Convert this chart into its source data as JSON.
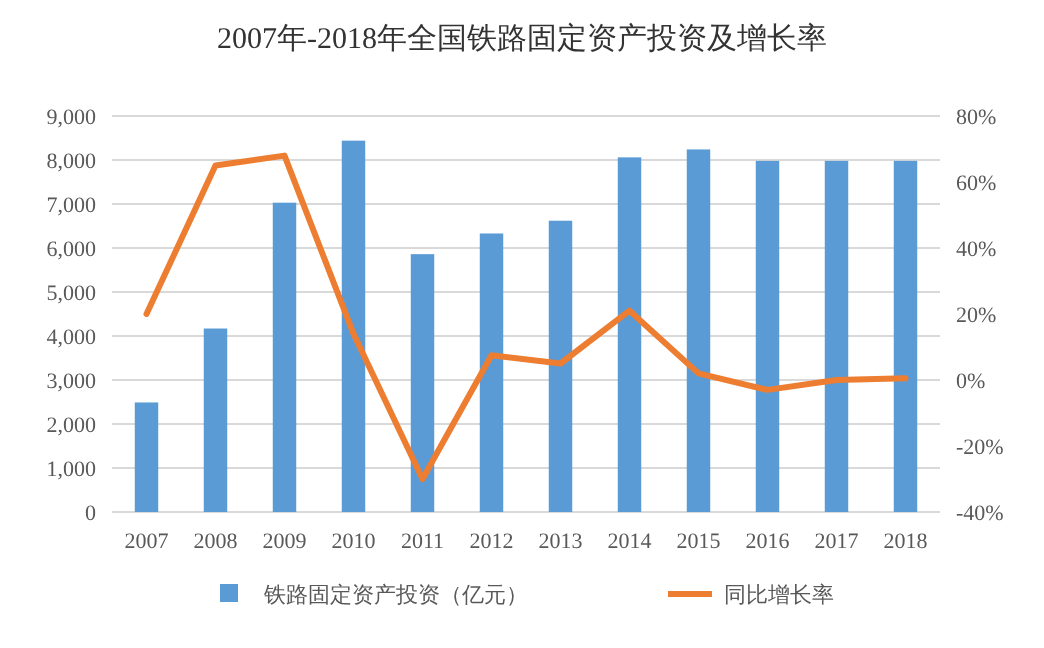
{
  "chart_data": {
    "type": "bar",
    "title": "2007年-2018年全国铁路固定资产投资及增长率",
    "categories": [
      "2007",
      "2008",
      "2009",
      "2010",
      "2011",
      "2012",
      "2013",
      "2014",
      "2015",
      "2016",
      "2017",
      "2018"
    ],
    "series": [
      {
        "name": "铁路固定资产投资（亿元）",
        "color": "#5b9bd5",
        "values": [
          2490,
          4170,
          7030,
          8440,
          5860,
          6330,
          6620,
          8060,
          8240,
          7980,
          7980,
          7980
        ]
      },
      {
        "name": "同比增长率",
        "type": "line",
        "axis": "y2",
        "color": "#ed7d31",
        "values": [
          20,
          65,
          68,
          14,
          -30,
          7.5,
          5,
          21,
          2,
          -3,
          0,
          0.5
        ]
      }
    ],
    "ylim": [
      0,
      9000
    ],
    "yticks": [
      0,
      {
        "value": 1000,
        "label": "1,000"
      },
      {
        "value": 2000,
        "label": "2,000"
      },
      {
        "value": 3000,
        "label": "3,000"
      },
      {
        "value": 4000,
        "label": "4,000"
      },
      {
        "value": 5000,
        "label": "5,000"
      },
      {
        "value": 6000,
        "label": "6,000"
      },
      {
        "value": 7000,
        "label": "7,000"
      },
      {
        "value": 8000,
        "label": "8,000"
      },
      {
        "value": 9000,
        "label": "9,000"
      }
    ],
    "y2lim": [
      -40,
      80
    ],
    "y2ticks": [
      {
        "value": -40,
        "label": "-40%"
      },
      {
        "value": -20,
        "label": "-20%"
      },
      {
        "value": 0,
        "label": "0%"
      },
      {
        "value": 20,
        "label": "20%"
      },
      {
        "value": 40,
        "label": "40%"
      },
      {
        "value": 60,
        "label": "60%"
      },
      {
        "value": 80,
        "label": "80%"
      }
    ],
    "grid": "y",
    "legend": "bottom"
  }
}
